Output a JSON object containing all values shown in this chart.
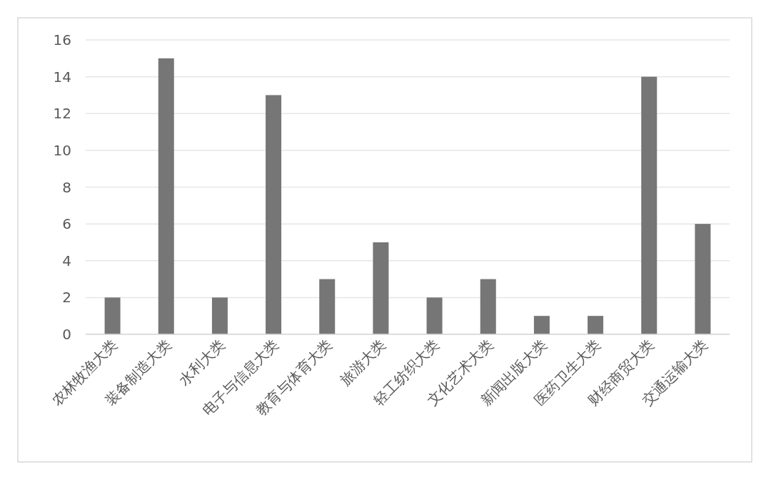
{
  "chart_data": {
    "type": "bar",
    "categories": [
      "农林牧渔大类",
      "装备制造大类",
      "水利大类",
      "电子与信息大类",
      "教育与体育大类",
      "旅游大类",
      "轻工纺织大类",
      "文化艺术大类",
      "新闻出版大类",
      "医药卫生大类",
      "财经商贸大类",
      "交通运输大类"
    ],
    "values": [
      2,
      15,
      2,
      13,
      3,
      5,
      2,
      3,
      1,
      1,
      14,
      6
    ],
    "color": "#767676",
    "ylim": [
      0,
      16
    ],
    "yticks": [
      0,
      2,
      4,
      6,
      8,
      10,
      12,
      14,
      16
    ],
    "grid": "y"
  }
}
